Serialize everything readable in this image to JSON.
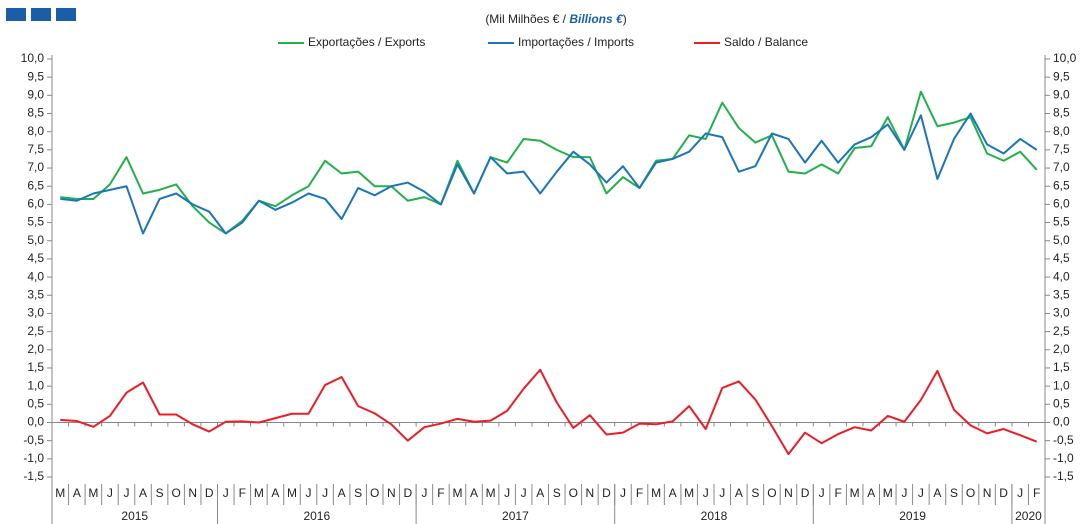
{
  "chart_data": {
    "type": "line",
    "subtitle_parts": [
      "(Mil Milhões € / ",
      "Billions €",
      ")"
    ],
    "categories": [
      "M",
      "A",
      "M",
      "J",
      "J",
      "A",
      "S",
      "O",
      "N",
      "D",
      "J",
      "F",
      "M",
      "A",
      "M",
      "J",
      "J",
      "A",
      "S",
      "O",
      "N",
      "D",
      "J",
      "F",
      "M",
      "A",
      "M",
      "J",
      "J",
      "A",
      "S",
      "O",
      "N",
      "D",
      "J",
      "F",
      "M",
      "A",
      "M",
      "J",
      "J",
      "A",
      "S",
      "O",
      "N",
      "D",
      "J",
      "F",
      "M",
      "A",
      "M",
      "J",
      "J",
      "A",
      "S",
      "O",
      "N",
      "D",
      "J",
      "F"
    ],
    "years": [
      "2015",
      "2016",
      "2017",
      "2018",
      "2019",
      "2020"
    ],
    "series": [
      {
        "name": "Exportações / Exports",
        "color": "#22b04a",
        "values": [
          6.2,
          6.15,
          6.15,
          6.55,
          7.3,
          6.3,
          6.4,
          6.55,
          5.95,
          5.5,
          5.2,
          5.55,
          6.1,
          5.95,
          6.25,
          6.5,
          7.2,
          6.85,
          6.9,
          6.5,
          6.5,
          6.1,
          6.2,
          6.0,
          7.2,
          6.3,
          7.3,
          7.15,
          7.8,
          7.75,
          7.5,
          7.3,
          7.3,
          6.3,
          6.75,
          6.45,
          7.2,
          7.25,
          7.9,
          7.8,
          8.8,
          8.1,
          7.7,
          7.9,
          6.9,
          6.85,
          7.1,
          6.85,
          7.55,
          7.6,
          8.4,
          7.5,
          9.1,
          8.15,
          8.25,
          8.4,
          7.4,
          7.2,
          7.45,
          6.95
        ]
      },
      {
        "name": "Importações / Imports",
        "color": "#1b75bb",
        "values": [
          6.15,
          6.1,
          6.3,
          6.4,
          6.5,
          5.2,
          6.15,
          6.3,
          6.0,
          5.8,
          5.2,
          5.5,
          6.1,
          5.85,
          6.05,
          6.3,
          6.15,
          5.6,
          6.45,
          6.25,
          6.5,
          6.6,
          6.35,
          6.0,
          7.1,
          6.3,
          7.3,
          6.85,
          6.9,
          6.3,
          6.9,
          7.45,
          7.1,
          6.6,
          7.05,
          6.45,
          7.15,
          7.25,
          7.45,
          7.95,
          7.85,
          6.9,
          7.05,
          7.95,
          7.8,
          7.15,
          7.75,
          7.15,
          7.65,
          7.85,
          8.2,
          7.5,
          8.45,
          6.7,
          7.8,
          8.5,
          7.65,
          7.4,
          7.8,
          7.5
        ]
      },
      {
        "name": "Saldo / Balance",
        "color": "#ee1c25",
        "values": [
          0.07,
          0.04,
          -0.12,
          0.18,
          0.82,
          1.1,
          0.22,
          0.22,
          -0.05,
          -0.25,
          0.02,
          0.03,
          0.0,
          0.12,
          0.24,
          0.24,
          1.03,
          1.25,
          0.45,
          0.25,
          -0.05,
          -0.5,
          -0.13,
          -0.03,
          0.1,
          0.02,
          0.05,
          0.32,
          0.93,
          1.45,
          0.55,
          -0.15,
          0.2,
          -0.33,
          -0.28,
          -0.03,
          -0.05,
          0.03,
          0.45,
          -0.18,
          0.95,
          1.13,
          0.63,
          -0.1,
          -0.87,
          -0.28,
          -0.57,
          -0.32,
          -0.13,
          -0.22,
          0.18,
          0.02,
          0.62,
          1.42,
          0.35,
          -0.08,
          -0.3,
          -0.18,
          -0.35,
          -0.53
        ]
      }
    ],
    "ylim": [
      -1.5,
      10.0
    ],
    "yticks": [
      {
        "value": -1.5,
        "label": "-1,5"
      },
      {
        "value": -1.0,
        "label": "-1,0"
      },
      {
        "value": -0.5,
        "label": "-0,5"
      },
      {
        "value": 0.0,
        "label": "0,0"
      },
      {
        "value": 0.5,
        "label": "0,5"
      },
      {
        "value": 1.0,
        "label": "1,0"
      },
      {
        "value": 1.5,
        "label": "1,5"
      },
      {
        "value": 2.0,
        "label": "2,0"
      },
      {
        "value": 2.5,
        "label": "2,5"
      },
      {
        "value": 3.0,
        "label": "3,0"
      },
      {
        "value": 3.5,
        "label": "3,5"
      },
      {
        "value": 4.0,
        "label": "4,0"
      },
      {
        "value": 4.5,
        "label": "4,5"
      },
      {
        "value": 5.0,
        "label": "5,0"
      },
      {
        "value": 5.5,
        "label": "5,5"
      },
      {
        "value": 6.0,
        "label": "6,0"
      },
      {
        "value": 6.5,
        "label": "6,5"
      },
      {
        "value": 7.0,
        "label": "7,0"
      },
      {
        "value": 7.5,
        "label": "7,5"
      },
      {
        "value": 8.0,
        "label": "8,0"
      },
      {
        "value": 8.5,
        "label": "8,5"
      },
      {
        "value": 9.0,
        "label": "9,0"
      },
      {
        "value": 9.5,
        "label": "9,5"
      },
      {
        "value": 10.0,
        "label": "10,0"
      }
    ],
    "legend": "top"
  }
}
